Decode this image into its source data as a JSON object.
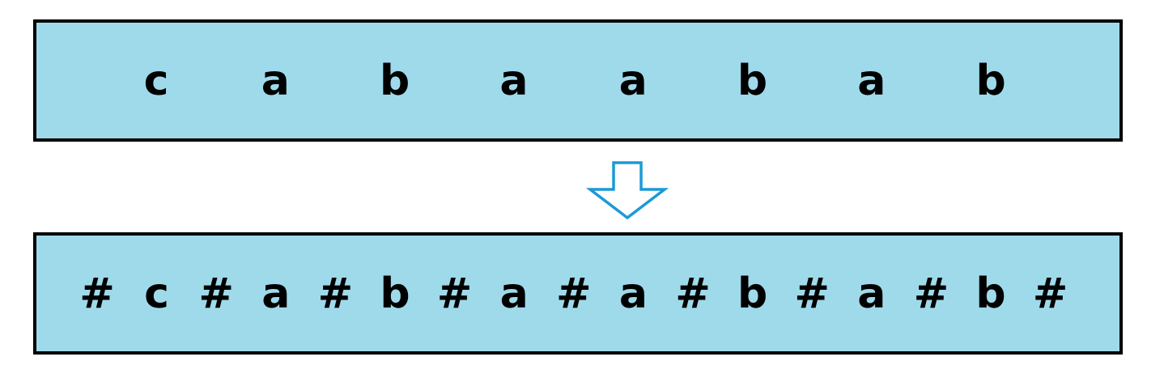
{
  "original_sequence": [
    "c",
    "a",
    "b",
    "a",
    "a",
    "b",
    "a",
    "b"
  ],
  "transformed_sequence": [
    "#",
    "c",
    "#",
    "a",
    "#",
    "b",
    "#",
    "a",
    "#",
    "a",
    "#",
    "b",
    "#",
    "a",
    "#",
    "b",
    "#"
  ],
  "arrow": {
    "icon": "down-arrow-icon",
    "color": "#1c9ad6"
  },
  "colors": {
    "strip_fill": "#9fdaea",
    "border": "#000000",
    "text": "#000000"
  }
}
